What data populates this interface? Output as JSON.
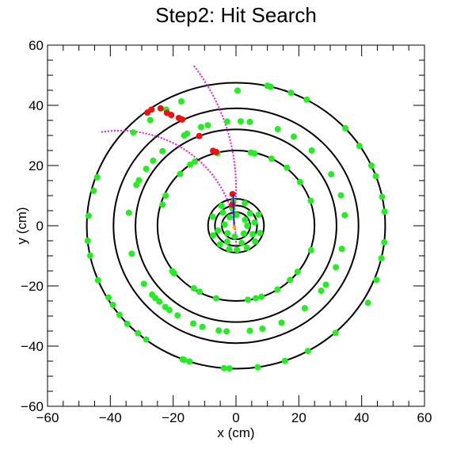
{
  "chart_data": {
    "type": "scatter",
    "title": "Step2: Hit Search",
    "xlabel": "x (cm)",
    "ylabel": "y (cm)",
    "xlim": [
      -60,
      60
    ],
    "ylim": [
      -60,
      60
    ],
    "x_ticks": [
      -60,
      -40,
      -20,
      0,
      20,
      40,
      60
    ],
    "y_ticks": [
      -60,
      -40,
      -20,
      0,
      20,
      40,
      60
    ],
    "x_tick_labels": [
      "−60",
      "−40",
      "−20",
      "0",
      "20",
      "40",
      "60"
    ],
    "y_tick_labels": [
      "−60",
      "−40",
      "−20",
      "0",
      "20",
      "40",
      "60"
    ],
    "grid": false,
    "colors": {
      "detector_circles": "#000000",
      "hits": "#22ee22",
      "selected_hits": "#ee1111",
      "track": "#ee11ee",
      "vertex_track": "#2222cc",
      "vertex": "#ffaa00"
    },
    "detector_circles": [
      {
        "name": "inner-layer-1",
        "center": [
          0,
          0
        ],
        "radius": 4.5
      },
      {
        "name": "inner-layer-2",
        "center": [
          0,
          0
        ],
        "radius": 6.7
      },
      {
        "name": "inner-layer-3",
        "center": [
          0,
          0
        ],
        "radius": 8.9
      },
      {
        "name": "outer-layer-1",
        "center": [
          0,
          0
        ],
        "radius": 25
      },
      {
        "name": "outer-layer-2",
        "center": [
          0,
          0
        ],
        "radius": 32
      },
      {
        "name": "outer-layer-3",
        "center": [
          0,
          0
        ],
        "radius": 39
      },
      {
        "name": "outer-layer-4",
        "center": [
          0,
          0
        ],
        "radius": 47.5
      }
    ],
    "track_arcs": [
      {
        "name": "track-arc-upper",
        "center": [
          -68,
          12.6
        ],
        "radius": 68,
        "theta_range_deg": [
          -8,
          37
        ],
        "style": "dotted"
      },
      {
        "name": "track-arc-lower",
        "center": [
          -37,
          -5.4
        ],
        "radius": 37,
        "theta_range_deg": [
          -2,
          100
        ],
        "style": "dotted"
      }
    ],
    "vertex_track": {
      "points": [
        [
          -0.6,
          0
        ],
        [
          -0.9,
          10.5
        ]
      ]
    },
    "vertex": [
      -0.5,
      -0.5
    ],
    "series": [
      {
        "name": "hits",
        "marker": "circle",
        "points": [
          [
            0.5,
            44.9
          ],
          [
            -17.4,
            41.3
          ],
          [
            -22.2,
            38.6
          ],
          [
            -27.3,
            35.1
          ],
          [
            -32.7,
            31.0
          ],
          [
            -44.2,
            16.1
          ],
          [
            -45.3,
            11.6
          ],
          [
            -46.9,
            3.3
          ],
          [
            -47.2,
            -5.0
          ],
          [
            -46.4,
            -9.9
          ],
          [
            -43.9,
            -18.1
          ],
          [
            -40.6,
            -23.8
          ],
          [
            -39.2,
            -26.3
          ],
          [
            -37.1,
            -29.6
          ],
          [
            -34.6,
            -32.6
          ],
          [
            -31.2,
            -35.7
          ],
          [
            -28.6,
            -37.8
          ],
          [
            -17.0,
            -44.4
          ],
          [
            -16.5,
            -44.6
          ],
          [
            -14.8,
            -45.1
          ],
          [
            -3.8,
            -47.3
          ],
          [
            -2.1,
            -47.4
          ],
          [
            6.9,
            -47.0
          ],
          [
            15.6,
            -44.9
          ],
          [
            22.9,
            -41.6
          ],
          [
            31.7,
            -35.6
          ],
          [
            42.0,
            -25.6
          ],
          [
            44.7,
            -18.0
          ],
          [
            46.3,
            -10.8
          ],
          [
            47.2,
            -5.5
          ],
          [
            47.3,
            4.7
          ],
          [
            46.5,
            9.6
          ],
          [
            44.5,
            16.5
          ],
          [
            43.1,
            20.0
          ],
          [
            39.3,
            26.5
          ],
          [
            34.8,
            32.4
          ],
          [
            22.5,
            41.9
          ],
          [
            17.5,
            44.2
          ],
          [
            11.0,
            46.2
          ],
          [
            10.0,
            46.5
          ],
          [
            -23.4,
            24.8
          ],
          [
            -26.4,
            21.6
          ],
          [
            -28.6,
            18.9
          ],
          [
            -30.9,
            15.1
          ],
          [
            -31.7,
            13.6
          ],
          [
            -34.1,
            4.3
          ],
          [
            -33.2,
            -9.3
          ],
          [
            -29.3,
            -19.3
          ],
          [
            -26.7,
            -22.9
          ],
          [
            -25.7,
            -24.0
          ],
          [
            -24.4,
            -25.2
          ],
          [
            -22.5,
            -27.0
          ],
          [
            -21.2,
            -28.0
          ],
          [
            -18.6,
            -29.8
          ],
          [
            -13.6,
            -32.5
          ],
          [
            -10.7,
            -33.6
          ],
          [
            -5.5,
            -34.8
          ],
          [
            -3.0,
            -35.1
          ],
          [
            4.4,
            -34.9
          ],
          [
            8.4,
            -34.2
          ],
          [
            14.5,
            -32.2
          ],
          [
            21.9,
            -27.4
          ],
          [
            27.1,
            -21.6
          ],
          [
            28.6,
            -19.6
          ],
          [
            31.8,
            -13.8
          ],
          [
            33.7,
            -7.7
          ],
          [
            34.6,
            3.5
          ],
          [
            33.4,
            10.1
          ],
          [
            30.3,
            17.1
          ],
          [
            24.1,
            25.0
          ],
          [
            18.4,
            29.6
          ],
          [
            13.3,
            32.1
          ],
          [
            4.4,
            34.5
          ],
          [
            1.5,
            34.7
          ],
          [
            -2.8,
            34.6
          ],
          [
            -9.0,
            33.4
          ],
          [
            -11.1,
            32.8
          ],
          [
            -15.6,
            30.6
          ],
          [
            -16.5,
            30.0
          ],
          [
            -17.8,
            17.2
          ],
          [
            -22.4,
            10.0
          ],
          [
            -23.4,
            7.0
          ],
          [
            -20.3,
            -15.1
          ],
          [
            -19.7,
            -15.8
          ],
          [
            -13.4,
            -20.8
          ],
          [
            -11.6,
            -21.9
          ],
          [
            -6.3,
            -24.1
          ],
          [
            3.8,
            -24.6
          ],
          [
            6.3,
            -24.1
          ],
          [
            8.1,
            -23.6
          ],
          [
            13.2,
            -21.2
          ],
          [
            17.2,
            -18.0
          ],
          [
            19.6,
            -15.3
          ],
          [
            23.9,
            -8.1
          ],
          [
            23.8,
            8.3
          ],
          [
            20.4,
            14.5
          ],
          [
            16.2,
            19.3
          ],
          [
            11.3,
            22.3
          ],
          [
            5.9,
            24.0
          ],
          [
            4.7,
            24.3
          ],
          [
            -5.9,
            24.1
          ],
          [
            -13.1,
            21.3
          ],
          [
            -14.6,
            20.3
          ],
          [
            0.2,
            3.6
          ],
          [
            -2.0,
            2.8
          ],
          [
            2.9,
            2.0
          ],
          [
            -3.6,
            0.4
          ],
          [
            3.6,
            0.0
          ],
          [
            -2.7,
            -2.5
          ],
          [
            2.5,
            -2.6
          ],
          [
            -0.4,
            -3.6
          ],
          [
            -1.2,
            5.8
          ],
          [
            -4.2,
            4.4
          ],
          [
            4.5,
            4.1
          ],
          [
            5.9,
            1.1
          ],
          [
            -5.7,
            -1.6
          ],
          [
            5.3,
            -2.8
          ],
          [
            -2.8,
            -5.3
          ],
          [
            1.8,
            -5.7
          ],
          [
            -0.8,
            8.0
          ],
          [
            2.8,
            7.5
          ],
          [
            -4.6,
            6.6
          ],
          [
            7.2,
            3.7
          ],
          [
            -7.4,
            3.0
          ],
          [
            7.6,
            -2.4
          ],
          [
            -7.3,
            -3.2
          ],
          [
            6.1,
            -5.2
          ],
          [
            -5.1,
            -6.2
          ],
          [
            -2.2,
            -7.8
          ],
          [
            0.3,
            -8.0
          ],
          [
            3.5,
            -7.3
          ]
        ]
      },
      {
        "name": "selected-hits",
        "marker": "circle",
        "points": [
          [
            -1.1,
            10.5
          ],
          [
            -1.2,
            7.0
          ],
          [
            -6.3,
            24.5
          ],
          [
            -7.3,
            24.9
          ],
          [
            -11.7,
            29.8
          ],
          [
            -17.1,
            35.3
          ],
          [
            -18.2,
            35.8
          ],
          [
            -20.6,
            36.8
          ],
          [
            -22.0,
            37.5
          ],
          [
            -26.9,
            38.6
          ],
          [
            -24.0,
            39.0
          ],
          [
            -28.2,
            37.6
          ]
        ]
      }
    ]
  }
}
